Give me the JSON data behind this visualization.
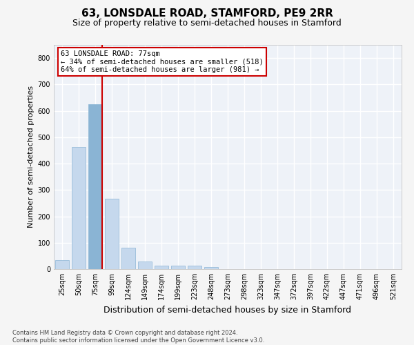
{
  "title": "63, LONSDALE ROAD, STAMFORD, PE9 2RR",
  "subtitle": "Size of property relative to semi-detached houses in Stamford",
  "xlabel": "Distribution of semi-detached houses by size in Stamford",
  "ylabel": "Number of semi-detached properties",
  "categories": [
    "25sqm",
    "50sqm",
    "75sqm",
    "99sqm",
    "124sqm",
    "149sqm",
    "174sqm",
    "199sqm",
    "223sqm",
    "248sqm",
    "273sqm",
    "298sqm",
    "323sqm",
    "347sqm",
    "372sqm",
    "397sqm",
    "422sqm",
    "447sqm",
    "471sqm",
    "496sqm",
    "521sqm"
  ],
  "bar_values": [
    33,
    463,
    625,
    267,
    82,
    30,
    13,
    12,
    12,
    8,
    0,
    0,
    0,
    0,
    0,
    0,
    0,
    0,
    0,
    0,
    0
  ],
  "bar_color": "#c5d8ed",
  "bar_edge_color": "#8ab4d4",
  "highlight_bar_index": 2,
  "highlight_bar_color": "#8ab4d4",
  "property_line_color": "#cc0000",
  "annotation_text": "63 LONSDALE ROAD: 77sqm\n← 34% of semi-detached houses are smaller (518)\n64% of semi-detached houses are larger (981) →",
  "annotation_box_color": "#ffffff",
  "annotation_box_edge": "#cc0000",
  "ylim": [
    0,
    850
  ],
  "yticks": [
    0,
    100,
    200,
    300,
    400,
    500,
    600,
    700,
    800
  ],
  "footnote": "Contains HM Land Registry data © Crown copyright and database right 2024.\nContains public sector information licensed under the Open Government Licence v3.0.",
  "bg_color": "#eef2f8",
  "grid_color": "#ffffff",
  "title_fontsize": 11,
  "subtitle_fontsize": 9,
  "tick_fontsize": 7,
  "ylabel_fontsize": 8,
  "xlabel_fontsize": 9,
  "footnote_fontsize": 6,
  "annotation_fontsize": 7.5
}
